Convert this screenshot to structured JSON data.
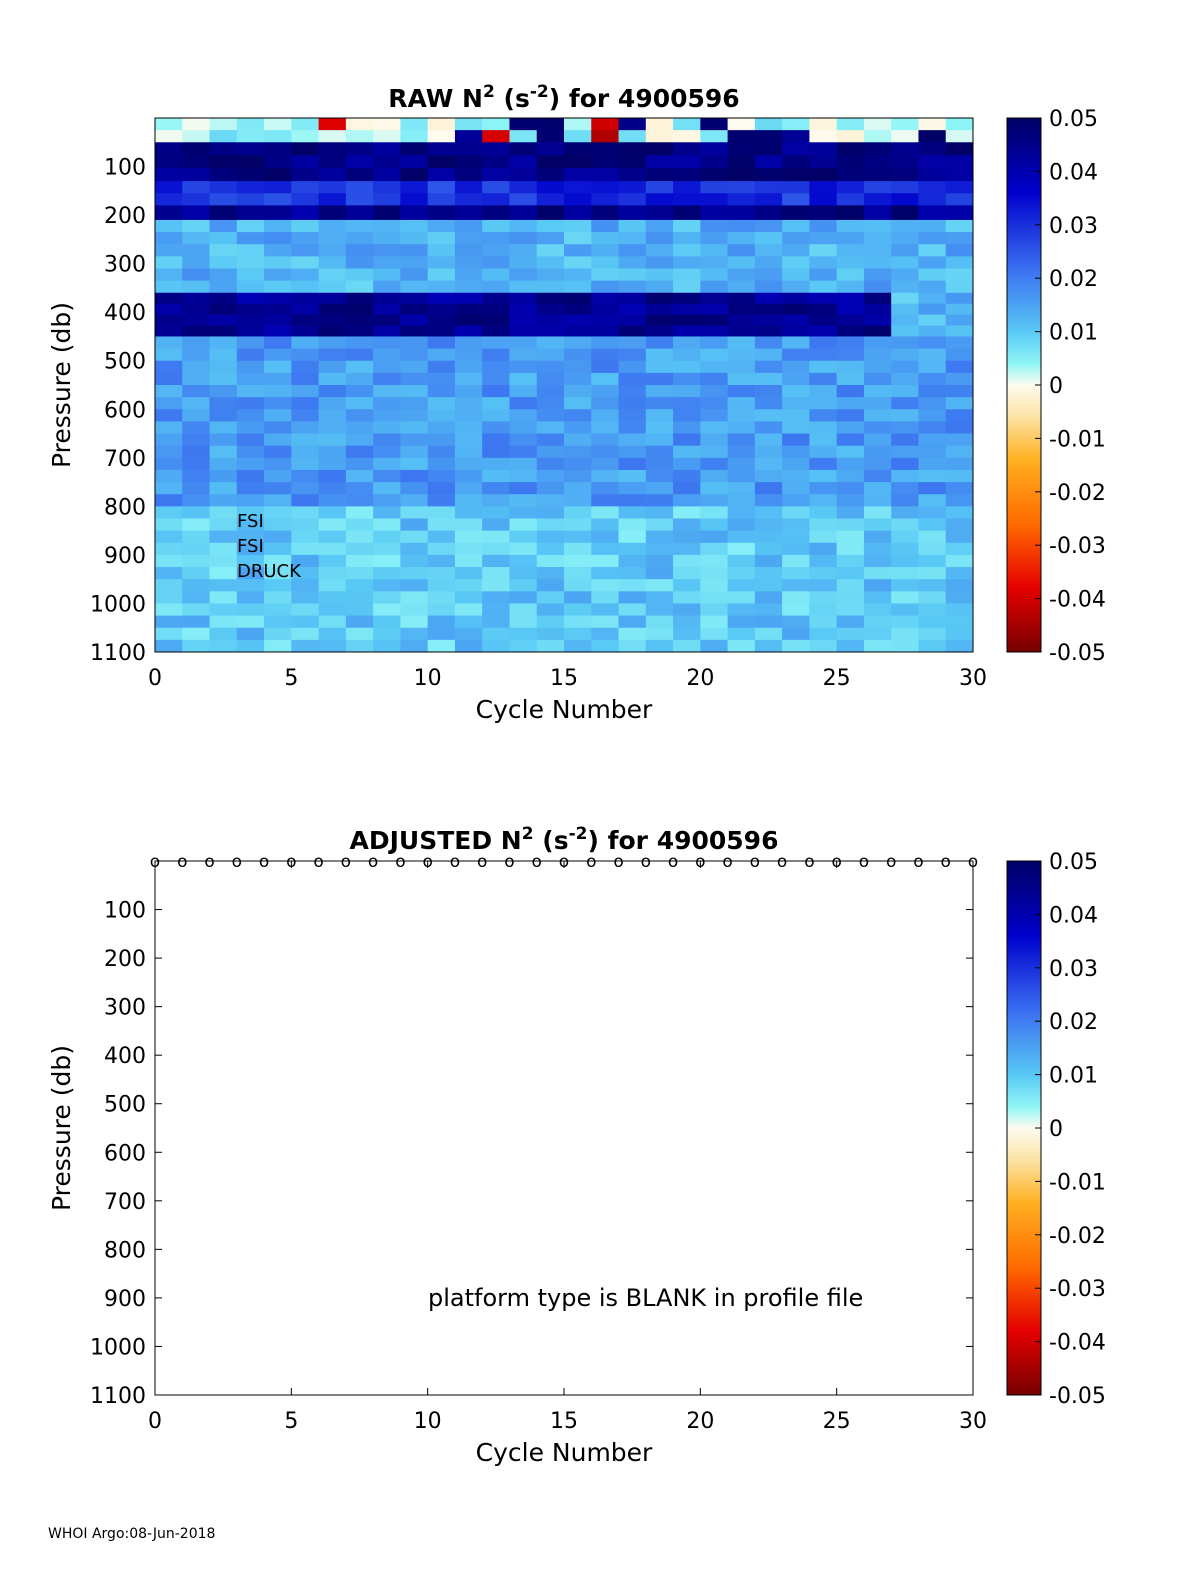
{
  "chart_data": [
    {
      "type": "heatmap",
      "title": {
        "main": "RAW N",
        "sup1": "2",
        "mid": " (s",
        "sup2": "-2",
        "tail": ") for 4900596"
      },
      "xlabel": "Cycle Number",
      "ylabel": "Pressure (db)",
      "xlim": [
        0,
        30
      ],
      "ylim": [
        0,
        1100
      ],
      "y_reversed": true,
      "xticks": [
        "0",
        "5",
        "10",
        "15",
        "20",
        "25",
        "30"
      ],
      "yticks": [
        "100",
        "200",
        "300",
        "400",
        "500",
        "600",
        "700",
        "800",
        "900",
        "1000",
        "1100"
      ],
      "colorbar": {
        "range": [
          -0.05,
          0.05
        ],
        "ticks": [
          "0.05",
          "0.04",
          "0.03",
          "0.02",
          "0.01",
          "0",
          "-0.01",
          "-0.02",
          "-0.03",
          "-0.04",
          "-0.05"
        ]
      },
      "annotations": [
        "FSI",
        "FSI",
        "DRUCK"
      ],
      "cycles": 30,
      "approx_profile": [
        {
          "p_top": 0,
          "p_bot": 50,
          "value": 0.003
        },
        {
          "p_top": 50,
          "p_bot": 130,
          "value": 0.046
        },
        {
          "p_top": 130,
          "p_bot": 180,
          "value": 0.03
        },
        {
          "p_top": 180,
          "p_bot": 210,
          "value": 0.045
        },
        {
          "p_top": 210,
          "p_bot": 360,
          "value": 0.013
        },
        {
          "p_top": 360,
          "p_bot": 450,
          "value": 0.044
        },
        {
          "p_top": 450,
          "p_bot": 800,
          "value": 0.016
        },
        {
          "p_top": 800,
          "p_bot": 1100,
          "value": 0.01
        }
      ]
    },
    {
      "type": "heatmap",
      "title": {
        "main": "ADJUSTED N",
        "sup1": "2",
        "mid": " (s",
        "sup2": "-2",
        "tail": ") for 4900596"
      },
      "xlabel": "Cycle Number",
      "ylabel": "Pressure (db)",
      "xlim": [
        0,
        30
      ],
      "ylim": [
        0,
        1100
      ],
      "y_reversed": true,
      "xticks": [
        "0",
        "5",
        "10",
        "15",
        "20",
        "25",
        "30"
      ],
      "yticks": [
        "100",
        "200",
        "300",
        "400",
        "500",
        "600",
        "700",
        "800",
        "900",
        "1000",
        "1100"
      ],
      "colorbar": {
        "range": [
          -0.05,
          0.05
        ],
        "ticks": [
          "0.05",
          "0.04",
          "0.03",
          "0.02",
          "0.01",
          "0",
          "-0.01",
          "-0.02",
          "-0.03",
          "-0.04",
          "-0.05"
        ]
      },
      "markers": {
        "symbol": "o",
        "pressure": 0,
        "cycles": [
          0,
          1,
          2,
          3,
          4,
          5,
          6,
          7,
          8,
          9,
          10,
          11,
          12,
          13,
          14,
          15,
          16,
          17,
          18,
          19,
          20,
          21,
          22,
          23,
          24,
          25,
          26,
          27,
          28,
          29,
          30
        ]
      },
      "annotation": "platform type is BLANK in profile file"
    }
  ],
  "footer": "WHOI Argo:08-Jun-2018"
}
